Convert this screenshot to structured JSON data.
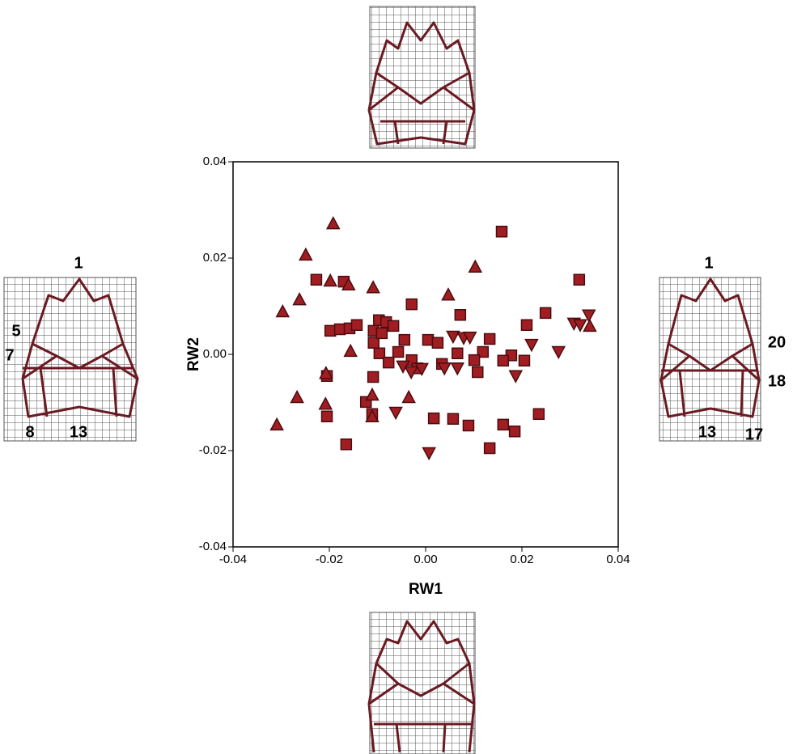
{
  "chart_data": {
    "type": "scatter",
    "xlabel": "RW1",
    "ylabel": "RW2",
    "xlim": [
      -0.04,
      0.04
    ],
    "ylim": [
      -0.04,
      0.04
    ],
    "xticks": [
      {
        "value": -0.04,
        "label": "-0.04"
      },
      {
        "value": -0.02,
        "label": "-0.02"
      },
      {
        "value": 0,
        "label": "0.00"
      },
      {
        "value": 0.02,
        "label": "0.02"
      },
      {
        "value": 0.04,
        "label": "0.04"
      }
    ],
    "yticks": [
      {
        "value": -0.04,
        "label": "-0.04"
      },
      {
        "value": -0.02,
        "label": "-0.02"
      },
      {
        "value": 0,
        "label": "0.00"
      },
      {
        "value": 0.02,
        "label": "0.02"
      },
      {
        "value": 0.04,
        "label": "0.04"
      }
    ],
    "annotations": [
      "1",
      "5",
      "7",
      "8",
      "13",
      "1",
      "20",
      "18",
      "13",
      "17"
    ],
    "series": [
      {
        "marker": "square",
        "color": "#a01e22",
        "x": [
          -0.0227,
          -0.017,
          0.0158,
          0.0319,
          -0.0029,
          0.0072,
          0.0249,
          0.021,
          -0.0198,
          -0.0178,
          -0.0158,
          -0.0143,
          -0.0108,
          -0.0097,
          -0.0082,
          -0.0067,
          -0.0108,
          -0.0091,
          -0.0096,
          -0.0057,
          -0.0044,
          0.0005,
          0.0025,
          0.0066,
          0.0133,
          0.0119,
          0.0178,
          0.0101,
          0.0161,
          -0.0077,
          -0.0029,
          -0.0017,
          0.0034,
          0.0108,
          -0.0205,
          -0.0109,
          -0.0124,
          -0.0111,
          -0.0205,
          0.0017,
          0.0057,
          0.0089,
          0.0161,
          0.0185,
          0.0235,
          -0.0165,
          0.0133,
          0.0205
        ],
        "y": [
          0.0155,
          0.0151,
          0.0255,
          0.0155,
          0.0104,
          0.0082,
          0.0086,
          0.0061,
          0.0049,
          0.0052,
          0.0054,
          0.0061,
          0.0049,
          0.0071,
          0.0067,
          0.0059,
          0.0024,
          0.0044,
          0.0002,
          0.0005,
          0.003,
          0.003,
          0.0024,
          0.0002,
          0.0032,
          0.0005,
          -0.0002,
          -0.0012,
          -0.0013,
          -0.0017,
          -0.0012,
          -0.0029,
          -0.002,
          -0.0037,
          -0.0045,
          -0.0047,
          -0.0099,
          -0.0124,
          -0.0129,
          -0.0133,
          -0.0134,
          -0.0148,
          -0.0146,
          -0.016,
          -0.0124,
          -0.0187,
          -0.0195,
          -0.0013
        ]
      },
      {
        "marker": "triangle-up",
        "color": "#a01e22",
        "x": [
          -0.0192,
          -0.0249,
          -0.0198,
          -0.016,
          -0.0109,
          0.0103,
          0.0047,
          -0.0262,
          -0.0297,
          -0.0156,
          -0.0207,
          -0.0267,
          -0.0208,
          -0.0111,
          -0.0035,
          -0.0309,
          0.0341,
          -0.0111
        ],
        "y": [
          0.0272,
          0.0207,
          0.0153,
          0.0145,
          0.0139,
          0.0182,
          0.0124,
          0.0114,
          0.0089,
          0.0007,
          -0.0039,
          -0.0089,
          -0.0103,
          -0.0084,
          -0.0089,
          -0.0146,
          0.0059,
          -0.0129
        ]
      },
      {
        "marker": "triangle-down",
        "color": "#a01e22",
        "x": [
          0.0007,
          -0.0062,
          0.0066,
          0.0187,
          0.0276,
          0.0308,
          0.0321,
          0.0339,
          0.022,
          0.0057,
          0.0079,
          0.0092,
          -0.0047,
          -0.003,
          -0.0008,
          0.0039
        ],
        "y": [
          -0.0205,
          -0.0121,
          -0.0029,
          -0.0045,
          0.0005,
          0.0064,
          0.0061,
          0.0081,
          0.002,
          0.0037,
          0.0034,
          0.0035,
          -0.0025,
          -0.0037,
          -0.003,
          -0.0029
        ]
      }
    ]
  }
}
